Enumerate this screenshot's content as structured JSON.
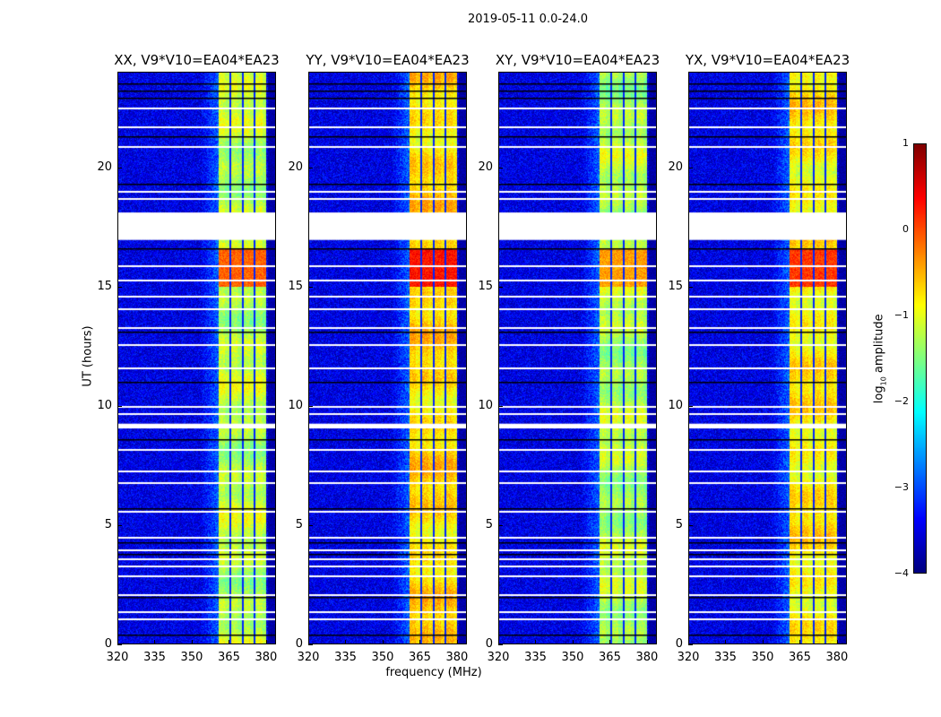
{
  "chart_data": {
    "type": "heatmap",
    "title": "2019-05-11 0.0-24.0",
    "xlabel": "frequency (MHz)",
    "ylabel": "UT (hours)",
    "xlim": [
      320,
      384
    ],
    "ylim": [
      0,
      24
    ],
    "xticks": [
      320,
      335,
      350,
      365,
      380
    ],
    "yticks": [
      0,
      5,
      10,
      15,
      20
    ],
    "colormap": "jet",
    "colorbar": {
      "label_prefix": "log",
      "label_sub": "10",
      "label_suffix": " amplitude",
      "range": [
        -4,
        1
      ],
      "ticks": [
        "1",
        "0",
        "−1",
        "−2",
        "−3",
        "−4"
      ],
      "tick_values": [
        1,
        0,
        -1,
        -2,
        -3,
        -4
      ]
    },
    "band_MHz": [
      360.5,
      380
    ],
    "band_channel_edges_MHz": [
      365.3,
      370.3,
      375.3
    ],
    "background_log_amp": -3.5,
    "flagged_gaps_hours": [
      [
        16.95,
        18.1
      ],
      [
        9.05,
        9.25
      ]
    ],
    "flagged_lines_hours": [
      22.5,
      21.7,
      20.9,
      19.0,
      18.7,
      15.9,
      15.3,
      14.6,
      14.1,
      13.3,
      12.6,
      11.6,
      10.0,
      9.7,
      8.2,
      7.3,
      6.8,
      5.6,
      4.5,
      4.0,
      3.6,
      3.3,
      2.9,
      2.1,
      1.4,
      1.1
    ],
    "dark_lines_hours": [
      23.5,
      23.2,
      22.9,
      21.3,
      19.3,
      16.6,
      13.1,
      11.0,
      8.6,
      5.7,
      4.3,
      3.8,
      2.0,
      0.4
    ],
    "panels": [
      {
        "title": "XX, V9*V10=EA04*EA23",
        "band_log_amp": -1.3,
        "hot_log_amp": -0.1
      },
      {
        "title": "YY, V9*V10=EA04*EA23",
        "band_log_amp": -0.8,
        "hot_log_amp": 0.3
      },
      {
        "title": "XY, V9*V10=EA04*EA23",
        "band_log_amp": -1.35,
        "hot_log_amp": -0.4
      },
      {
        "title": "YX, V9*V10=EA04*EA23",
        "band_log_amp": -0.9,
        "hot_log_amp": 0.1
      }
    ]
  }
}
